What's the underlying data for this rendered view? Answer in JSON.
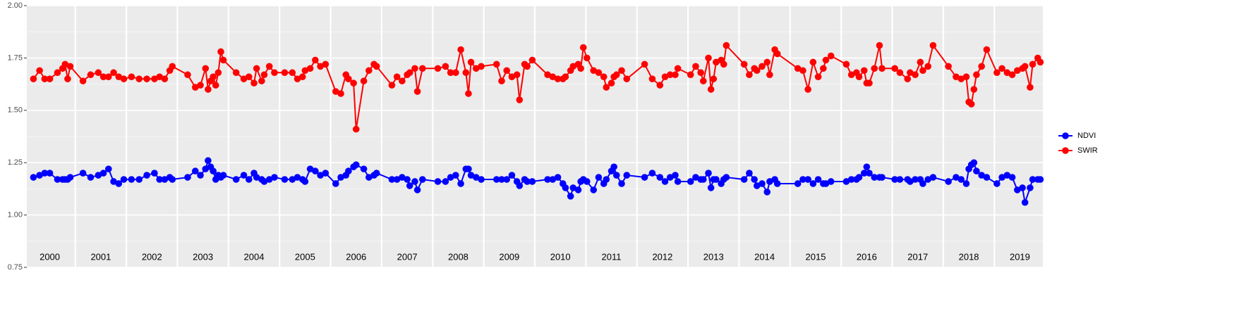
{
  "chart_data": {
    "type": "line",
    "x": [
      2000.18,
      2000.3,
      2000.4,
      2000.5,
      2000.65,
      2000.75,
      2000.8,
      2000.85,
      2000.9,
      2001.15,
      2001.3,
      2001.45,
      2001.55,
      2001.65,
      2001.75,
      2001.85,
      2001.95,
      2002.1,
      2002.25,
      2002.4,
      2002.55,
      2002.65,
      2002.75,
      2002.85,
      2002.9,
      2003.2,
      2003.35,
      2003.45,
      2003.55,
      2003.6,
      2003.65,
      2003.7,
      2003.75,
      2003.8,
      2003.85,
      2003.9,
      2004.15,
      2004.3,
      2004.4,
      2004.5,
      2004.55,
      2004.65,
      2004.7,
      2004.8,
      2004.9,
      2005.1,
      2005.25,
      2005.35,
      2005.45,
      2005.5,
      2005.6,
      2005.7,
      2005.8,
      2005.9,
      2006.1,
      2006.2,
      2006.3,
      2006.35,
      2006.45,
      2006.5,
      2006.65,
      2006.75,
      2006.85,
      2006.9,
      2007.2,
      2007.3,
      2007.4,
      2007.5,
      2007.55,
      2007.65,
      2007.7,
      2007.8,
      2008.1,
      2008.25,
      2008.35,
      2008.45,
      2008.55,
      2008.65,
      2008.7,
      2008.75,
      2008.85,
      2008.95,
      2009.25,
      2009.35,
      2009.45,
      2009.55,
      2009.65,
      2009.7,
      2009.8,
      2009.85,
      2009.95,
      2010.25,
      2010.35,
      2010.45,
      2010.55,
      2010.6,
      2010.7,
      2010.75,
      2010.85,
      2010.9,
      2010.95,
      2011.02,
      2011.15,
      2011.25,
      2011.35,
      2011.4,
      2011.5,
      2011.55,
      2011.6,
      2011.7,
      2011.8,
      2012.15,
      2012.3,
      2012.45,
      2012.55,
      2012.65,
      2012.75,
      2012.8,
      2013.05,
      2013.15,
      2013.25,
      2013.3,
      2013.4,
      2013.45,
      2013.5,
      2013.55,
      2013.65,
      2013.7,
      2013.75,
      2014.1,
      2014.2,
      2014.3,
      2014.35,
      2014.45,
      2014.55,
      2014.6,
      2014.7,
      2014.75,
      2015.15,
      2015.25,
      2015.35,
      2015.45,
      2015.55,
      2015.65,
      2015.7,
      2015.8,
      2016.1,
      2016.2,
      2016.3,
      2016.35,
      2016.45,
      2016.5,
      2016.55,
      2016.65,
      2016.75,
      2016.8,
      2017.05,
      2017.15,
      2017.3,
      2017.35,
      2017.45,
      2017.55,
      2017.6,
      2017.7,
      2017.8,
      2018.1,
      2018.25,
      2018.35,
      2018.45,
      2018.5,
      2018.55,
      2018.6,
      2018.65,
      2018.75,
      2018.85,
      2019.05,
      2019.15,
      2019.25,
      2019.35,
      2019.45,
      2019.55,
      2019.6,
      2019.7,
      2019.75,
      2019.85,
      2019.9
    ],
    "series": [
      {
        "name": "NDVI",
        "color": "#0000ff",
        "values": [
          1.18,
          1.19,
          1.2,
          1.2,
          1.17,
          1.17,
          1.17,
          1.17,
          1.18,
          1.2,
          1.18,
          1.19,
          1.2,
          1.22,
          1.16,
          1.15,
          1.17,
          1.17,
          1.17,
          1.19,
          1.2,
          1.17,
          1.17,
          1.18,
          1.17,
          1.18,
          1.21,
          1.19,
          1.22,
          1.26,
          1.23,
          1.21,
          1.17,
          1.19,
          1.18,
          1.19,
          1.17,
          1.19,
          1.17,
          1.2,
          1.18,
          1.17,
          1.16,
          1.17,
          1.18,
          1.17,
          1.17,
          1.18,
          1.17,
          1.16,
          1.22,
          1.21,
          1.19,
          1.2,
          1.15,
          1.18,
          1.19,
          1.21,
          1.23,
          1.24,
          1.22,
          1.18,
          1.19,
          1.2,
          1.17,
          1.17,
          1.18,
          1.17,
          1.14,
          1.16,
          1.12,
          1.17,
          1.16,
          1.16,
          1.18,
          1.19,
          1.15,
          1.22,
          1.22,
          1.19,
          1.18,
          1.17,
          1.17,
          1.17,
          1.17,
          1.19,
          1.16,
          1.14,
          1.17,
          1.16,
          1.16,
          1.17,
          1.17,
          1.18,
          1.15,
          1.13,
          1.09,
          1.13,
          1.12,
          1.16,
          1.17,
          1.16,
          1.12,
          1.18,
          1.15,
          1.17,
          1.21,
          1.23,
          1.19,
          1.15,
          1.19,
          1.18,
          1.2,
          1.18,
          1.16,
          1.18,
          1.19,
          1.16,
          1.16,
          1.18,
          1.17,
          1.17,
          1.2,
          1.13,
          1.17,
          1.17,
          1.15,
          1.17,
          1.18,
          1.17,
          1.2,
          1.17,
          1.14,
          1.15,
          1.11,
          1.16,
          1.17,
          1.15,
          1.15,
          1.17,
          1.17,
          1.15,
          1.17,
          1.15,
          1.15,
          1.16,
          1.16,
          1.17,
          1.17,
          1.18,
          1.2,
          1.23,
          1.2,
          1.18,
          1.18,
          1.18,
          1.17,
          1.17,
          1.17,
          1.16,
          1.17,
          1.17,
          1.15,
          1.17,
          1.18,
          1.16,
          1.18,
          1.17,
          1.15,
          1.22,
          1.24,
          1.25,
          1.21,
          1.19,
          1.18,
          1.15,
          1.18,
          1.19,
          1.18,
          1.12,
          1.13,
          1.06,
          1.13,
          1.17,
          1.17,
          1.17
        ]
      },
      {
        "name": "SWIR",
        "color": "#ff0000",
        "values": [
          1.65,
          1.69,
          1.65,
          1.65,
          1.68,
          1.7,
          1.72,
          1.65,
          1.71,
          1.64,
          1.67,
          1.68,
          1.66,
          1.66,
          1.68,
          1.66,
          1.65,
          1.66,
          1.65,
          1.65,
          1.65,
          1.66,
          1.65,
          1.69,
          1.71,
          1.67,
          1.61,
          1.62,
          1.7,
          1.6,
          1.64,
          1.66,
          1.62,
          1.68,
          1.78,
          1.74,
          1.68,
          1.65,
          1.66,
          1.63,
          1.7,
          1.64,
          1.67,
          1.71,
          1.68,
          1.68,
          1.68,
          1.65,
          1.66,
          1.69,
          1.7,
          1.74,
          1.71,
          1.72,
          1.59,
          1.58,
          1.67,
          1.65,
          1.63,
          1.41,
          1.64,
          1.69,
          1.72,
          1.71,
          1.62,
          1.66,
          1.64,
          1.67,
          1.68,
          1.7,
          1.59,
          1.7,
          1.7,
          1.71,
          1.68,
          1.68,
          1.79,
          1.68,
          1.58,
          1.73,
          1.7,
          1.71,
          1.72,
          1.64,
          1.69,
          1.66,
          1.67,
          1.55,
          1.72,
          1.71,
          1.74,
          1.67,
          1.66,
          1.65,
          1.65,
          1.66,
          1.69,
          1.71,
          1.72,
          1.7,
          1.8,
          1.75,
          1.69,
          1.68,
          1.66,
          1.61,
          1.63,
          1.66,
          1.67,
          1.69,
          1.65,
          1.72,
          1.65,
          1.62,
          1.66,
          1.67,
          1.67,
          1.7,
          1.67,
          1.71,
          1.68,
          1.64,
          1.75,
          1.6,
          1.65,
          1.73,
          1.74,
          1.72,
          1.81,
          1.72,
          1.67,
          1.7,
          1.69,
          1.71,
          1.73,
          1.67,
          1.79,
          1.77,
          1.7,
          1.69,
          1.6,
          1.73,
          1.66,
          1.7,
          1.74,
          1.76,
          1.72,
          1.67,
          1.68,
          1.66,
          1.69,
          1.63,
          1.63,
          1.7,
          1.81,
          1.7,
          1.7,
          1.68,
          1.65,
          1.68,
          1.67,
          1.73,
          1.69,
          1.71,
          1.81,
          1.71,
          1.66,
          1.65,
          1.66,
          1.54,
          1.53,
          1.6,
          1.67,
          1.71,
          1.79,
          1.68,
          1.7,
          1.68,
          1.67,
          1.69,
          1.7,
          1.71,
          1.61,
          1.72,
          1.75,
          1.73
        ]
      }
    ],
    "xlim": [
      2000.05,
      2019.95
    ],
    "xticks": [
      {
        "value": 2000.5,
        "label": "2000"
      },
      {
        "value": 2001.5,
        "label": "2001"
      },
      {
        "value": 2002.5,
        "label": "2002"
      },
      {
        "value": 2003.5,
        "label": "2003"
      },
      {
        "value": 2004.5,
        "label": "2004"
      },
      {
        "value": 2005.5,
        "label": "2005"
      },
      {
        "value": 2006.5,
        "label": "2006"
      },
      {
        "value": 2007.5,
        "label": "2007"
      },
      {
        "value": 2008.5,
        "label": "2008"
      },
      {
        "value": 2009.5,
        "label": "2009"
      },
      {
        "value": 2010.5,
        "label": "2010"
      },
      {
        "value": 2011.5,
        "label": "2011"
      },
      {
        "value": 2012.5,
        "label": "2012"
      },
      {
        "value": 2013.5,
        "label": "2013"
      },
      {
        "value": 2014.5,
        "label": "2014"
      },
      {
        "value": 2015.5,
        "label": "2015"
      },
      {
        "value": 2016.5,
        "label": "2016"
      },
      {
        "value": 2017.5,
        "label": "2017"
      },
      {
        "value": 2018.5,
        "label": "2018"
      },
      {
        "value": 2019.5,
        "label": "2019"
      }
    ],
    "ylim": [
      0.75,
      2.0
    ],
    "yticks": [
      0.75,
      {
        "value": 1.0,
        "label": "1.00"
      },
      1.25,
      {
        "value": 1.5,
        "label": "1.50"
      },
      1.75,
      {
        "value": 2.0,
        "label": "2.00"
      }
    ],
    "grid": true,
    "legend": "right"
  }
}
